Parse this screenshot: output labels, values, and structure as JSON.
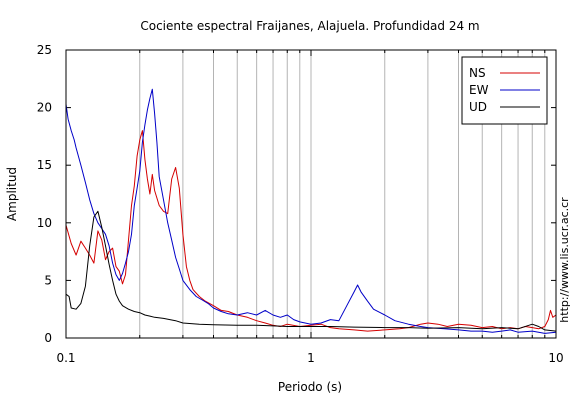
{
  "chart_data": {
    "type": "line",
    "title": "Cociente espectral Fraijanes, Alajuela. Profundidad 24 m",
    "xlabel": "Periodo (s)",
    "ylabel": "Amplitud",
    "xscale": "log",
    "xlim": [
      0.1,
      10
    ],
    "ylim": [
      0,
      25
    ],
    "x_tick_labels": [
      {
        "value": 0.1,
        "label": "0.1"
      },
      {
        "value": 1,
        "label": "1"
      },
      {
        "value": 10,
        "label": "10"
      }
    ],
    "y_ticks": [
      0,
      5,
      10,
      15,
      20,
      25
    ],
    "grid": "vertical-log",
    "legend_position": "top-right",
    "side_text": "http://www.lis.ucr.ac.cr",
    "series": [
      {
        "name": "NS",
        "color": "#d40000",
        "points": [
          [
            0.1,
            9.8
          ],
          [
            0.105,
            8.2
          ],
          [
            0.11,
            7.2
          ],
          [
            0.115,
            8.4
          ],
          [
            0.12,
            7.8
          ],
          [
            0.125,
            7.2
          ],
          [
            0.13,
            6.5
          ],
          [
            0.135,
            9.3
          ],
          [
            0.14,
            8.5
          ],
          [
            0.145,
            6.8
          ],
          [
            0.15,
            7.5
          ],
          [
            0.155,
            7.8
          ],
          [
            0.16,
            6.2
          ],
          [
            0.165,
            5.8
          ],
          [
            0.17,
            4.7
          ],
          [
            0.175,
            5.5
          ],
          [
            0.18,
            8.5
          ],
          [
            0.185,
            11.5
          ],
          [
            0.19,
            13.2
          ],
          [
            0.195,
            15.8
          ],
          [
            0.2,
            17.2
          ],
          [
            0.205,
            18.0
          ],
          [
            0.21,
            15.5
          ],
          [
            0.215,
            13.8
          ],
          [
            0.22,
            12.5
          ],
          [
            0.225,
            14.2
          ],
          [
            0.23,
            12.8
          ],
          [
            0.24,
            11.5
          ],
          [
            0.25,
            11.0
          ],
          [
            0.26,
            10.8
          ],
          [
            0.27,
            13.8
          ],
          [
            0.28,
            14.8
          ],
          [
            0.29,
            13.0
          ],
          [
            0.3,
            9.0
          ],
          [
            0.31,
            6.2
          ],
          [
            0.32,
            5.0
          ],
          [
            0.33,
            4.2
          ],
          [
            0.35,
            3.6
          ],
          [
            0.37,
            3.2
          ],
          [
            0.4,
            2.8
          ],
          [
            0.43,
            2.4
          ],
          [
            0.46,
            2.3
          ],
          [
            0.5,
            2.0
          ],
          [
            0.55,
            1.8
          ],
          [
            0.6,
            1.5
          ],
          [
            0.65,
            1.3
          ],
          [
            0.7,
            1.1
          ],
          [
            0.75,
            1.0
          ],
          [
            0.8,
            1.2
          ],
          [
            0.9,
            1.0
          ],
          [
            1.0,
            1.1
          ],
          [
            1.1,
            1.2
          ],
          [
            1.2,
            0.9
          ],
          [
            1.3,
            0.8
          ],
          [
            1.5,
            0.7
          ],
          [
            1.7,
            0.6
          ],
          [
            2.0,
            0.7
          ],
          [
            2.3,
            0.8
          ],
          [
            2.5,
            0.9
          ],
          [
            2.8,
            1.2
          ],
          [
            3.0,
            1.3
          ],
          [
            3.3,
            1.2
          ],
          [
            3.6,
            1.0
          ],
          [
            4.0,
            1.2
          ],
          [
            4.5,
            1.1
          ],
          [
            5.0,
            0.9
          ],
          [
            5.5,
            1.0
          ],
          [
            6.0,
            0.8
          ],
          [
            6.5,
            0.9
          ],
          [
            7.0,
            0.8
          ],
          [
            7.5,
            1.0
          ],
          [
            8.0,
            0.9
          ],
          [
            8.5,
            0.8
          ],
          [
            9.0,
            1.0
          ],
          [
            9.3,
            1.6
          ],
          [
            9.5,
            2.4
          ],
          [
            9.7,
            1.8
          ],
          [
            10.0,
            2.0
          ]
        ]
      },
      {
        "name": "EW",
        "color": "#0000c8",
        "points": [
          [
            0.1,
            20.3
          ],
          [
            0.102,
            19.0
          ],
          [
            0.105,
            18.0
          ],
          [
            0.108,
            17.2
          ],
          [
            0.11,
            16.5
          ],
          [
            0.115,
            15.0
          ],
          [
            0.12,
            13.5
          ],
          [
            0.125,
            12.0
          ],
          [
            0.13,
            10.8
          ],
          [
            0.135,
            10.0
          ],
          [
            0.14,
            9.5
          ],
          [
            0.145,
            9.0
          ],
          [
            0.15,
            8.0
          ],
          [
            0.155,
            6.5
          ],
          [
            0.16,
            5.5
          ],
          [
            0.165,
            5.0
          ],
          [
            0.17,
            5.6
          ],
          [
            0.175,
            6.5
          ],
          [
            0.18,
            7.5
          ],
          [
            0.185,
            9.0
          ],
          [
            0.19,
            11.5
          ],
          [
            0.195,
            13.0
          ],
          [
            0.2,
            14.5
          ],
          [
            0.205,
            17.0
          ],
          [
            0.21,
            18.5
          ],
          [
            0.215,
            19.8
          ],
          [
            0.22,
            20.8
          ],
          [
            0.225,
            21.6
          ],
          [
            0.23,
            19.5
          ],
          [
            0.235,
            17.0
          ],
          [
            0.24,
            14.0
          ],
          [
            0.25,
            12.0
          ],
          [
            0.26,
            10.0
          ],
          [
            0.27,
            8.5
          ],
          [
            0.28,
            7.0
          ],
          [
            0.29,
            6.0
          ],
          [
            0.3,
            5.0
          ],
          [
            0.32,
            4.2
          ],
          [
            0.34,
            3.6
          ],
          [
            0.36,
            3.3
          ],
          [
            0.38,
            3.0
          ],
          [
            0.4,
            2.6
          ],
          [
            0.43,
            2.3
          ],
          [
            0.46,
            2.1
          ],
          [
            0.5,
            2.0
          ],
          [
            0.55,
            2.2
          ],
          [
            0.6,
            2.0
          ],
          [
            0.65,
            2.4
          ],
          [
            0.7,
            2.0
          ],
          [
            0.75,
            1.8
          ],
          [
            0.8,
            2.0
          ],
          [
            0.85,
            1.6
          ],
          [
            0.9,
            1.4
          ],
          [
            1.0,
            1.2
          ],
          [
            1.1,
            1.3
          ],
          [
            1.2,
            1.6
          ],
          [
            1.3,
            1.5
          ],
          [
            1.4,
            2.8
          ],
          [
            1.5,
            4.0
          ],
          [
            1.55,
            4.6
          ],
          [
            1.6,
            4.0
          ],
          [
            1.7,
            3.2
          ],
          [
            1.8,
            2.5
          ],
          [
            2.0,
            2.0
          ],
          [
            2.2,
            1.5
          ],
          [
            2.5,
            1.2
          ],
          [
            2.8,
            1.0
          ],
          [
            3.0,
            0.9
          ],
          [
            3.5,
            0.8
          ],
          [
            4.0,
            0.7
          ],
          [
            4.5,
            0.6
          ],
          [
            5.0,
            0.6
          ],
          [
            5.5,
            0.5
          ],
          [
            6.0,
            0.6
          ],
          [
            6.5,
            0.7
          ],
          [
            7.0,
            0.5
          ],
          [
            8.0,
            0.6
          ],
          [
            9.0,
            0.4
          ],
          [
            10.0,
            0.5
          ]
        ]
      },
      {
        "name": "UD",
        "color": "#000000",
        "points": [
          [
            0.1,
            3.8
          ],
          [
            0.103,
            3.6
          ],
          [
            0.105,
            2.6
          ],
          [
            0.11,
            2.5
          ],
          [
            0.115,
            3.0
          ],
          [
            0.12,
            4.5
          ],
          [
            0.125,
            8.0
          ],
          [
            0.13,
            10.5
          ],
          [
            0.135,
            11.0
          ],
          [
            0.14,
            9.6
          ],
          [
            0.145,
            8.0
          ],
          [
            0.15,
            6.4
          ],
          [
            0.155,
            5.0
          ],
          [
            0.16,
            3.8
          ],
          [
            0.165,
            3.2
          ],
          [
            0.17,
            2.8
          ],
          [
            0.18,
            2.5
          ],
          [
            0.19,
            2.3
          ],
          [
            0.2,
            2.2
          ],
          [
            0.21,
            2.0
          ],
          [
            0.22,
            1.9
          ],
          [
            0.23,
            1.8
          ],
          [
            0.25,
            1.7
          ],
          [
            0.28,
            1.5
          ],
          [
            0.3,
            1.3
          ],
          [
            0.35,
            1.2
          ],
          [
            0.4,
            1.15
          ],
          [
            0.5,
            1.1
          ],
          [
            0.6,
            1.1
          ],
          [
            0.7,
            1.05
          ],
          [
            0.8,
            1.0
          ],
          [
            1.0,
            1.0
          ],
          [
            1.2,
            1.0
          ],
          [
            1.5,
            0.95
          ],
          [
            2.0,
            0.9
          ],
          [
            2.5,
            0.9
          ],
          [
            3.0,
            0.85
          ],
          [
            4.0,
            0.9
          ],
          [
            5.0,
            0.8
          ],
          [
            6.0,
            0.9
          ],
          [
            7.0,
            0.8
          ],
          [
            8.0,
            1.2
          ],
          [
            8.5,
            1.0
          ],
          [
            9.0,
            0.7
          ],
          [
            10.0,
            0.6
          ]
        ]
      }
    ]
  }
}
